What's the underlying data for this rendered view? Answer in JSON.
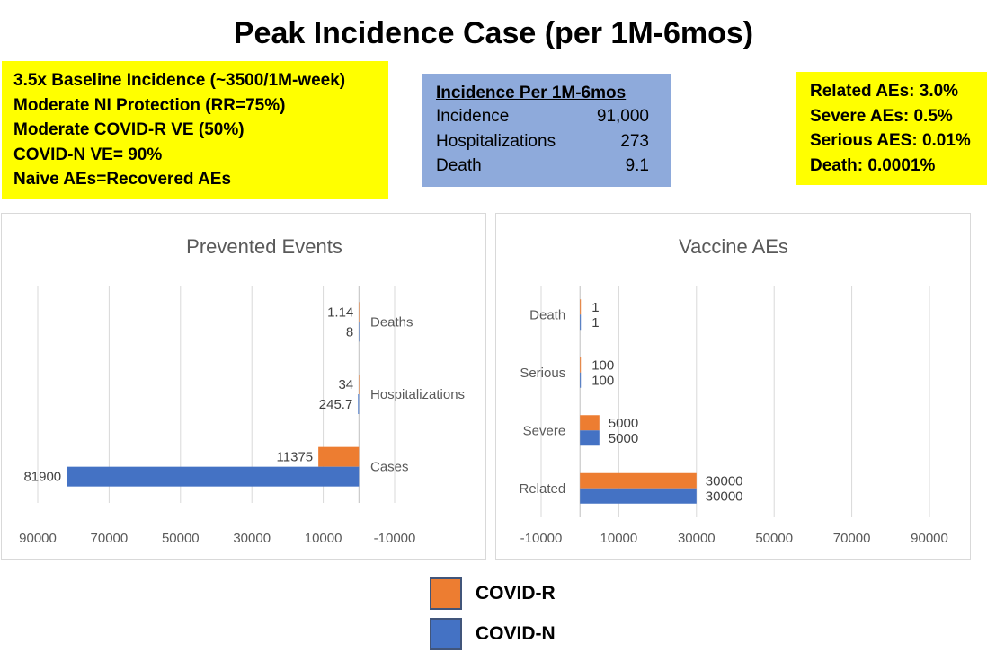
{
  "title": "Peak Incidence Case  (per 1M-6mos)",
  "assumptions": [
    "3.5x Baseline Incidence (~3500/1M-week)",
    "Moderate NI Protection (RR=75%)",
    "Moderate COVID-R VE (50%)",
    "COVID-N VE= 90%",
    "Naive AEs=Recovered AEs"
  ],
  "incidence_box": {
    "header": "Incidence Per 1M-6mos",
    "rows": [
      {
        "label": "Incidence",
        "value": "91,000"
      },
      {
        "label": "Hospitalizations",
        "value": "273"
      },
      {
        "label": "Death",
        "value": "9.1"
      }
    ]
  },
  "ae_rates": [
    "Related AEs:  3.0%",
    "Severe AEs: 0.5%",
    "Serious AES: 0.01%",
    "Death: 0.0001%"
  ],
  "colors": {
    "covid_r": "#ed7d31",
    "covid_n": "#4472c4",
    "highlight": "#ffff00",
    "incidence_bg": "#8eaadb"
  },
  "legend": [
    {
      "name": "COVID-R",
      "color": "#ed7d31"
    },
    {
      "name": "COVID-N",
      "color": "#4472c4"
    }
  ],
  "chart_data": [
    {
      "type": "bar",
      "orientation": "horizontal",
      "title": "Prevented Events",
      "x_reversed": true,
      "xlim": [
        -10000,
        90000
      ],
      "xticks": [
        90000,
        70000,
        50000,
        30000,
        10000,
        -10000
      ],
      "categories": [
        "Cases",
        "Hospitalizations",
        "Deaths"
      ],
      "series": [
        {
          "name": "COVID-R",
          "values": [
            11375,
            34,
            1.14
          ],
          "labels": [
            "11375",
            "34",
            "1.14"
          ]
        },
        {
          "name": "COVID-N",
          "values": [
            81900,
            245.7,
            8
          ],
          "labels": [
            "81900",
            "245.7",
            "8"
          ]
        }
      ]
    },
    {
      "type": "bar",
      "orientation": "horizontal",
      "title": "Vaccine AEs",
      "x_reversed": false,
      "xlim": [
        -10000,
        90000
      ],
      "xticks": [
        -10000,
        10000,
        30000,
        50000,
        70000,
        90000
      ],
      "categories": [
        "Related",
        "Severe",
        "Serious",
        "Death"
      ],
      "series": [
        {
          "name": "COVID-R",
          "values": [
            30000,
            5000,
            100,
            1
          ],
          "labels": [
            "30000",
            "5000",
            "100",
            "1"
          ]
        },
        {
          "name": "COVID-N",
          "values": [
            30000,
            5000,
            100,
            1
          ],
          "labels": [
            "30000",
            "5000",
            "100",
            "1"
          ]
        }
      ]
    }
  ]
}
